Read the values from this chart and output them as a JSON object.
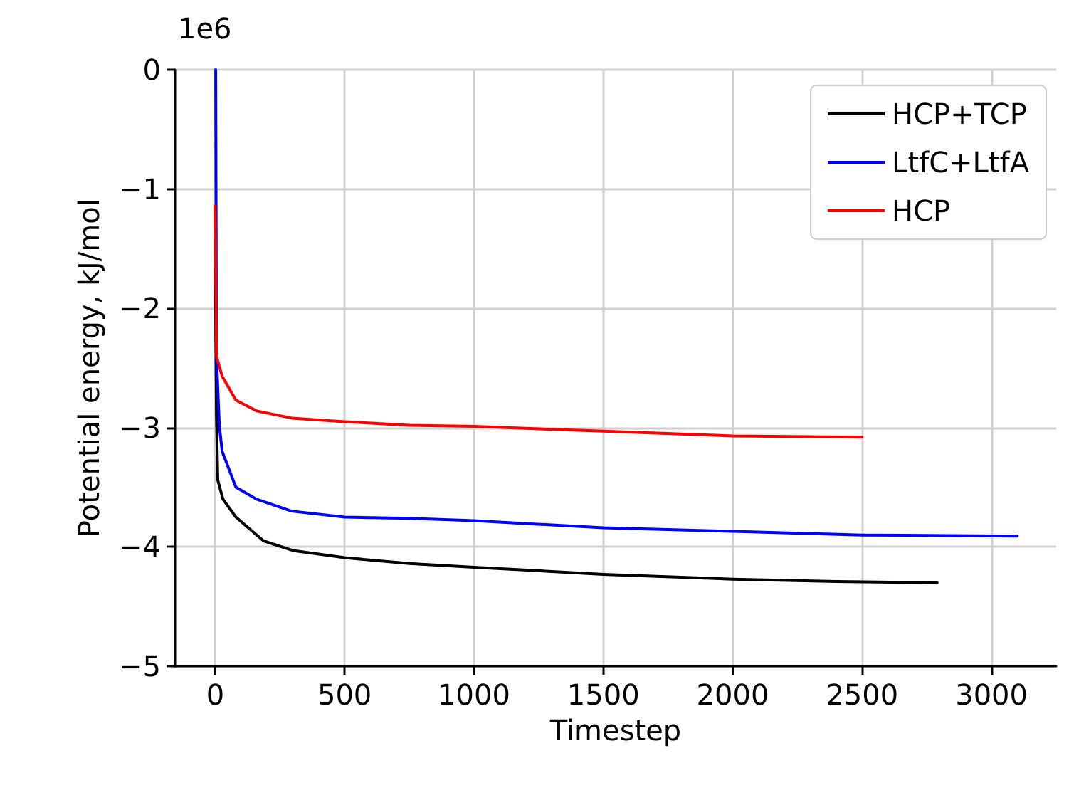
{
  "chart_data": {
    "type": "line",
    "xlabel": "Timestep",
    "ylabel": "Potential energy, kJ/mol",
    "annotations": [
      "1e6"
    ],
    "xlim": [
      -155,
      3250
    ],
    "xticks": [
      0,
      500,
      1000,
      1500,
      2000,
      2500,
      3000
    ],
    "ylim": [
      -5,
      0
    ],
    "yticks": [
      {
        "value": -5,
        "label": "−5"
      },
      {
        "value": -4,
        "label": "−4"
      },
      {
        "value": -3,
        "label": "−3"
      },
      {
        "value": -2,
        "label": "−2"
      },
      {
        "value": -1,
        "label": "−1"
      },
      {
        "value": 0,
        "label": "0"
      }
    ],
    "grid": true,
    "legend": "top right",
    "line_style": "solid",
    "marker": "none",
    "series": [
      {
        "name": "HCP+TCP",
        "color": "#000000",
        "x": [
          0,
          5,
          10,
          30,
          80,
          187,
          300,
          500,
          750,
          1000,
          1500,
          2000,
          2400,
          2790
        ],
        "values": [
          -1.52,
          -2.9,
          -3.44,
          -3.6,
          -3.75,
          -3.95,
          -4.03,
          -4.09,
          -4.14,
          -4.17,
          -4.23,
          -4.27,
          -4.29,
          -4.3
        ]
      },
      {
        "name": "LtfC+LtfA",
        "color": "#0000ff",
        "x": [
          2,
          5,
          16,
          27,
          80,
          160,
          295,
          500,
          750,
          1000,
          1500,
          2000,
          2500,
          3100
        ],
        "values": [
          0,
          -2.4,
          -2.98,
          -3.2,
          -3.5,
          -3.6,
          -3.7,
          -3.75,
          -3.76,
          -3.78,
          -3.84,
          -3.87,
          -3.9,
          -3.91
        ]
      },
      {
        "name": "HCP",
        "color": "#ff0000",
        "x": [
          0,
          5,
          27,
          80,
          160,
          295,
          500,
          750,
          1000,
          1500,
          2000,
          2500
        ],
        "values": [
          -1.14,
          -2.4,
          -2.57,
          -2.77,
          -2.86,
          -2.92,
          -2.95,
          -2.98,
          -2.99,
          -3.03,
          -3.07,
          -3.08
        ]
      }
    ]
  }
}
